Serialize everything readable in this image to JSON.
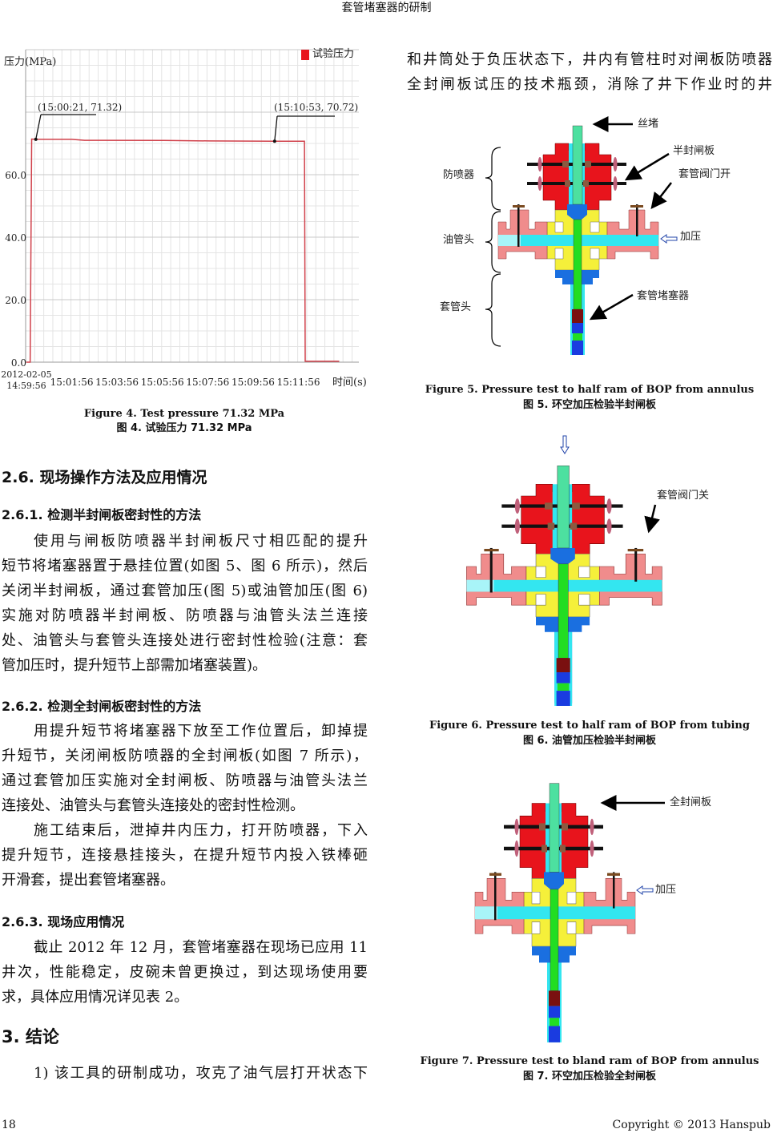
{
  "header": {
    "running_title": "套管堵塞器的研制"
  },
  "footer": {
    "page_number": "18",
    "copyright": "Copyright © 2013 Hanspub"
  },
  "figure4": {
    "caption_en": "Figure 4. Test pressure 71.32 MPa",
    "caption_zh": "图 4.  试验压力 71.32 MPa",
    "chart_data": {
      "type": "line",
      "ylabel": "压力(MPa)",
      "xlabel": "时间(s)",
      "ylim": [
        0,
        100
      ],
      "xlim": [
        "14:59:54",
        "15:14:36"
      ],
      "yticks": [
        "0.0",
        "20.0",
        "40.0",
        "60.0"
      ],
      "ytick_values": [
        0,
        20,
        40,
        60
      ],
      "xticks": [
        {
          "label": "2012-02-05",
          "label2": "14:59:56",
          "value": "14:59:56"
        },
        {
          "label": "15:01:56",
          "value": "15:01:56"
        },
        {
          "label": "15:03:56",
          "value": "15:03:56"
        },
        {
          "label": "15:05:56",
          "value": "15:05:56"
        },
        {
          "label": "15:07:56",
          "value": "15:07:56"
        },
        {
          "label": "15:09:56",
          "value": "15:09:56"
        },
        {
          "label": "15:11:56",
          "value": "15:11:56"
        }
      ],
      "grid": true,
      "legend_position": "top-right",
      "series": [
        {
          "name": "试验压力",
          "color": "#e8141c",
          "line_color": "#d0404a",
          "points": [
            [
              "14:59:56",
              0
            ],
            [
              "15:00:06",
              0
            ],
            [
              "15:00:10",
              71.4
            ],
            [
              "15:00:21",
              71.32
            ],
            [
              "15:01:56",
              71.3
            ],
            [
              "15:02:30",
              71.0
            ],
            [
              "15:06:00",
              70.95
            ],
            [
              "15:08:00",
              70.8
            ],
            [
              "15:10:53",
              70.72
            ],
            [
              "15:12:12",
              70.72
            ],
            [
              "15:12:14",
              0.3
            ],
            [
              "15:13:44",
              0.3
            ]
          ]
        }
      ],
      "annotations": [
        {
          "text": "(15:00:21, 71.32)",
          "x": "15:00:21",
          "y": 71.32
        },
        {
          "text": "(15:10:53, 70.72)",
          "x": "15:10:53",
          "y": 70.72
        }
      ]
    }
  },
  "section_2_6": {
    "title": "2.6.  现场操作方法及应用情况",
    "s1": {
      "title": "2.6.1.  检测半封闸板密封性的方法",
      "lines": [
        "使用与闸板防喷器半封闸板尺寸相匹配的提升",
        "短节将堵塞器置于悬挂位置(如图 5、图 6 所示)，然后",
        "关闭半封闸板，通过套管加压(图 5)或油管加压(图 6)",
        "实施对防喷器半封闸板、防喷器与油管头法兰连接",
        "处、油管头与套管头连接处进行密封性检验(注意：套",
        "管加压时，提升短节上部需加堵塞装置)。"
      ]
    },
    "s2": {
      "title": "2.6.2.  检测全封闸板密封性的方法",
      "p1": [
        "用提升短节将堵塞器下放至工作位置后，卸掉提",
        "升短节，关闭闸板防喷器的全封闸板(如图 7 所示)，",
        "通过套管加压实施对全封闸板、防喷器与油管头法兰",
        "连接处、油管头与套管头连接处的密封性检测。"
      ],
      "p2": [
        "施工结束后，泄掉井内压力，打开防喷器，下入",
        "提升短节，连接悬挂接头，在提升短节内投入铁棒砸",
        "开滑套，提出套管堵塞器。"
      ]
    },
    "s3": {
      "title": "2.6.3.  现场应用情况",
      "lines": [
        "截止 2012 年 12 月，套管堵塞器在现场已应用 11",
        "井次，性能稳定，皮碗未曾更换过，到达现场使用要",
        "求，具体应用情况详见表 2。"
      ]
    }
  },
  "section_3": {
    "title": "3.  结论",
    "lines": [
      "1)  该工具的研制成功，攻克了油气层打开状态下"
    ]
  },
  "right_column": {
    "lines": [
      "和井筒处于负压状态下，井内有管柱时对闸板防喷器",
      "全封闸板试压的技术瓶颈，消除了井下作业时的井"
    ]
  },
  "figure5": {
    "labels": {
      "plug": "丝堵",
      "half_ram": "半封闸板",
      "casing_valve_open": "套管阀门开",
      "pressurize": "加压",
      "casing_plugger": "套管堵塞器",
      "bop": "防喷器",
      "tubing_head": "油管头",
      "casing_head": "套管头"
    },
    "caption_en": "Figure 5. Pressure test to half ram of BOP from annulus",
    "caption_zh": "图 5.  环空加压检验半封闸板"
  },
  "figure6": {
    "labels": {
      "casing_valve_closed": "套管阀门关"
    },
    "caption_en": "Figure 6. Pressure test to half ram of BOP from tubing",
    "caption_zh": "图 6.  油管加压检验半封闸板"
  },
  "figure7": {
    "labels": {
      "blind_ram": "全封闸板",
      "pressurize": "加压"
    },
    "caption_en": "Figure 7. Pressure test to bland ram of BOP from annulus",
    "caption_zh": "图 7.  环空加压检验全封闸板"
  },
  "colors": {
    "bop": "#e8141c",
    "adapter": "#f5f03a",
    "flange": "#f08c8c",
    "bore": "#33e6f0",
    "mandrel": "#22dd22",
    "spool": "#1a6fe0",
    "plugger": "#7a1010"
  }
}
